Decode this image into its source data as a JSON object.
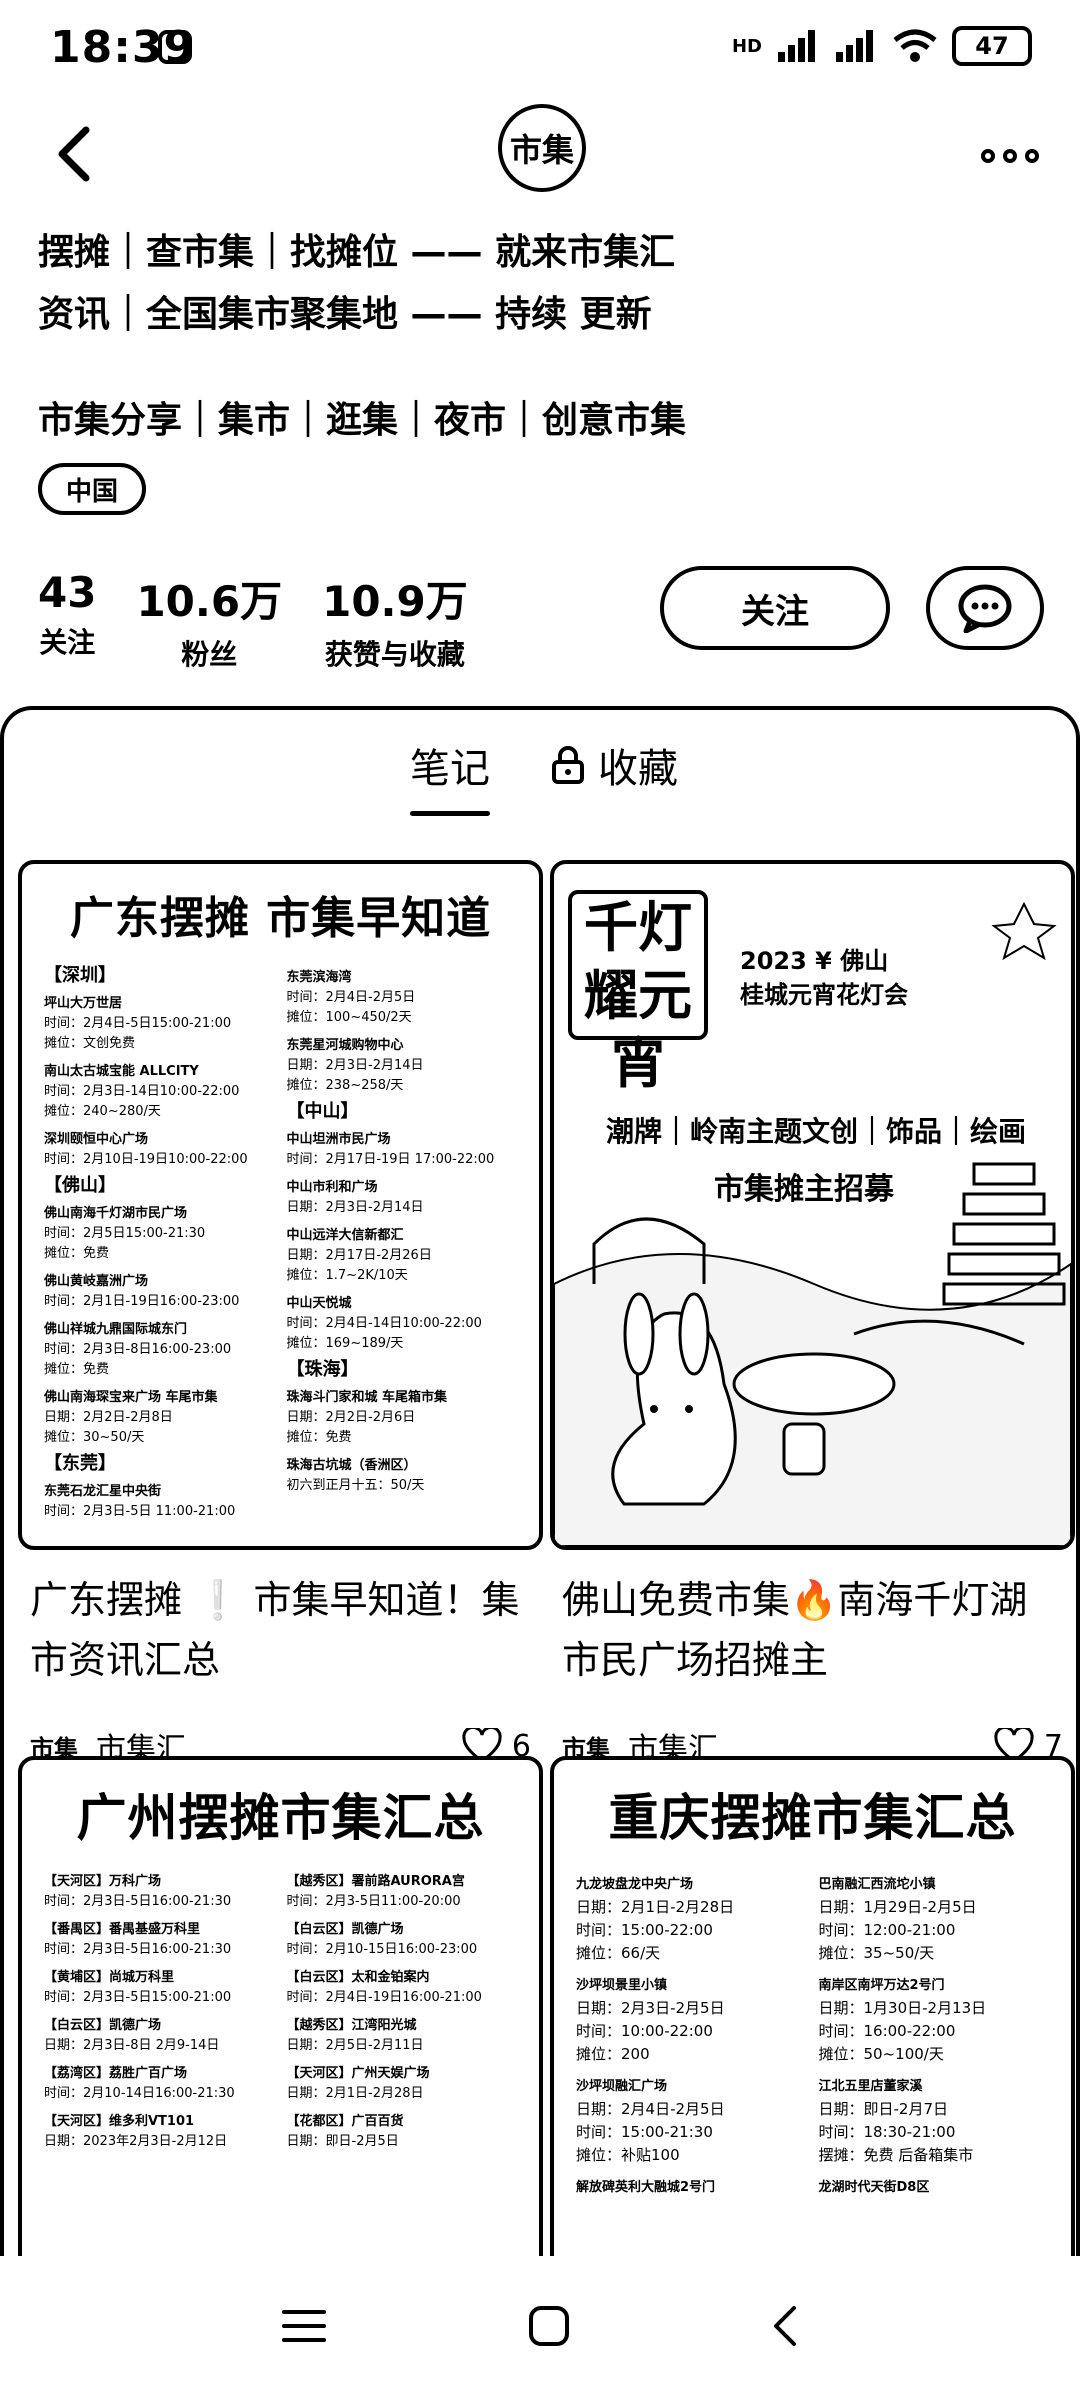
{
  "status": {
    "time": "18:39",
    "battery": "47",
    "network": "HD"
  },
  "header": {
    "logo_text": "市集"
  },
  "profile": {
    "bio_lines": [
      "摆摊｜查市集｜找摊位 —— 就来市集汇",
      "资讯｜全国集市聚集地 —— 持续 更新",
      "市集分享｜集市｜逛集｜夜市｜创意市集"
    ],
    "region": "中国",
    "stats": [
      {
        "value": "43",
        "label": "关注"
      },
      {
        "value": "10.6万",
        "label": "粉丝"
      },
      {
        "value": "10.9万",
        "label": "获赞与收藏"
      }
    ],
    "follow_label": "关注"
  },
  "tabs": [
    {
      "label": "笔记"
    },
    {
      "label": "收藏"
    }
  ],
  "notes": [
    {
      "title": "广东摆摊 ❕ 市集早知道！集市资讯汇总",
      "author": "市集汇",
      "author_logo": "市集",
      "likes": "6",
      "poster": {
        "title": "广东摆摊 市集早知道",
        "left": [
          {
            "region": "【深圳】"
          },
          {
            "name": "坪山大万世居",
            "lines": [
              "时间：2月4日-5日15:00-21:00",
              "摊位：文创免费"
            ]
          },
          {
            "name": "南山太古城宝能 ALLCITY",
            "lines": [
              "时间：2月3日-14日10:00-22:00",
              "摊位：240~280/天"
            ]
          },
          {
            "name": "深圳颐恒中心广场",
            "lines": [
              "时间：2月10日-19日10:00-22:00"
            ]
          },
          {
            "region": "【佛山】"
          },
          {
            "name": "佛山南海千灯湖市民广场",
            "lines": [
              "时间：2月5日15:00-21:30",
              "摊位：免费"
            ]
          },
          {
            "name": "佛山黄岐嘉洲广场",
            "lines": [
              "时间：2月1日-19日16:00-23:00"
            ]
          },
          {
            "name": "佛山祥城九鼎国际城东门",
            "lines": [
              "时间：2月3日-8日16:00-23:00",
              "摊位：免费"
            ]
          },
          {
            "name": "佛山南海琛宝来广场 车尾市集",
            "lines": [
              "日期：2月2日-2月8日",
              "摊位：30~50/天"
            ]
          },
          {
            "region": "【东莞】"
          },
          {
            "name": "东莞石龙汇星中央街",
            "lines": [
              "时间：2月3日-5日 11:00-21:00"
            ]
          }
        ],
        "right": [
          {
            "name": "东莞滨海湾",
            "lines": [
              "时间：2月4日-2月5日",
              "摊位：100~450/2天"
            ]
          },
          {
            "name": "东莞星河城购物中心",
            "lines": [
              "日期：2月3日-2月14日",
              "摊位：238~258/天"
            ]
          },
          {
            "region": "【中山】"
          },
          {
            "name": "中山坦洲市民广场",
            "lines": [
              "时间：2月17日-19日 17:00-22:00"
            ]
          },
          {
            "name": "中山市利和广场",
            "lines": [
              "日期：2月3日-2月14日"
            ]
          },
          {
            "name": "中山远洋大信新都汇",
            "lines": [
              "日期：2月17日-2月26日",
              "摊位：1.7~2K/10天"
            ]
          },
          {
            "name": "中山天悦城",
            "lines": [
              "时间：2月4日-14日10:00-22:00",
              "摊位：169~189/天"
            ]
          },
          {
            "region": "【珠海】"
          },
          {
            "name": "珠海斗门家和城 车尾箱市集",
            "lines": [
              "日期：2月2日-2月6日",
              "摊位：免费"
            ]
          },
          {
            "name": "珠海古坑城（香洲区）",
            "lines": [
              "初六到正月十五：50/天"
            ]
          }
        ]
      }
    },
    {
      "title": "佛山免费市集🔥南海千灯湖市民广场招摊主",
      "author": "市集汇",
      "author_logo": "市集",
      "likes": "7",
      "festival": {
        "big_title": "千灯耀元宵",
        "headline_1": "2023 ¥ 佛山",
        "headline_2": "桂城元宵花灯会",
        "banner": "潮牌｜岭南主题文创｜饰品｜绘画",
        "sub": "市集摊主招募"
      }
    },
    {
      "title": "",
      "poster": {
        "title": "广州摆摊市集汇总",
        "left": [
          {
            "name": "【天河区】万科广场",
            "lines": [
              "时间：2月3日-5日16:00-21:30"
            ]
          },
          {
            "name": "【番禺区】番禺基盛万科里",
            "lines": [
              "时间：2月3日-5日16:00-21:30"
            ]
          },
          {
            "name": "【黄埔区】尚城万科里",
            "lines": [
              "时间：2月3日-5日15:00-21:00"
            ]
          },
          {
            "name": "【白云区】凯德广场",
            "lines": [
              "日期：2月3日-8日 2月9-14日"
            ]
          },
          {
            "name": "【荔湾区】荔胜广百广场",
            "lines": [
              "时间：2月10-14日16:00-21:30"
            ]
          },
          {
            "name": "【天河区】维多利VT101",
            "lines": [
              "日期：2023年2月3日-2月12日"
            ]
          }
        ],
        "right": [
          {
            "name": "【越秀区】署前路AURORA宫",
            "lines": [
              "时间：2月3-5日11:00-20:00"
            ]
          },
          {
            "name": "【白云区】凯德广场",
            "lines": [
              "时间：2月10-15日16:00-23:00"
            ]
          },
          {
            "name": "【白云区】太和金铂案内",
            "lines": [
              "时间：2月4日-19日16:00-21:00"
            ]
          },
          {
            "name": "【越秀区】江湾阳光城",
            "lines": [
              "日期：2月5日-2月11日"
            ]
          },
          {
            "name": "【天河区】广州天娱广场",
            "lines": [
              "日期：2月1日-2月28日"
            ]
          },
          {
            "name": "【花都区】广百百货",
            "lines": [
              "日期：即日-2月5日"
            ]
          }
        ]
      }
    },
    {
      "title": "",
      "poster": {
        "title": "重庆摆摊市集汇总",
        "left": [
          {
            "name": "九龙坡盘龙中央广场",
            "lines": [
              "日期：2月1日-2月28日",
              "时间：15:00-22:00",
              "摊位：66/天"
            ]
          },
          {
            "name": "沙坪坝景里小镇",
            "lines": [
              "日期：2月3日-2月5日",
              "时间：10:00-22:00",
              "摊位：200"
            ]
          },
          {
            "name": "沙坪坝融汇广场",
            "lines": [
              "日期：2月4日-2月5日",
              "时间：15:00-21:30",
              "摊位：补贴100"
            ]
          },
          {
            "name": "解放碑英利大融城2号门",
            "lines": []
          }
        ],
        "right": [
          {
            "name": "巴南融汇西流坨小镇",
            "lines": [
              "日期：1月29日-2月5日",
              "时间：12:00-21:00",
              "摊位：35~50/天"
            ]
          },
          {
            "name": "南岸区南坪万达2号门",
            "lines": [
              "日期：1月30日-2月13日",
              "时间：16:00-22:00",
              "摊位：50~100/天"
            ]
          },
          {
            "name": "江北五里店董家溪",
            "lines": [
              "日期：即日-2月7日",
              "时间：18:30-21:00",
              "摆摊：免费 后备箱集市"
            ]
          },
          {
            "name": "龙湖时代天街D8区",
            "lines": []
          }
        ]
      }
    }
  ]
}
